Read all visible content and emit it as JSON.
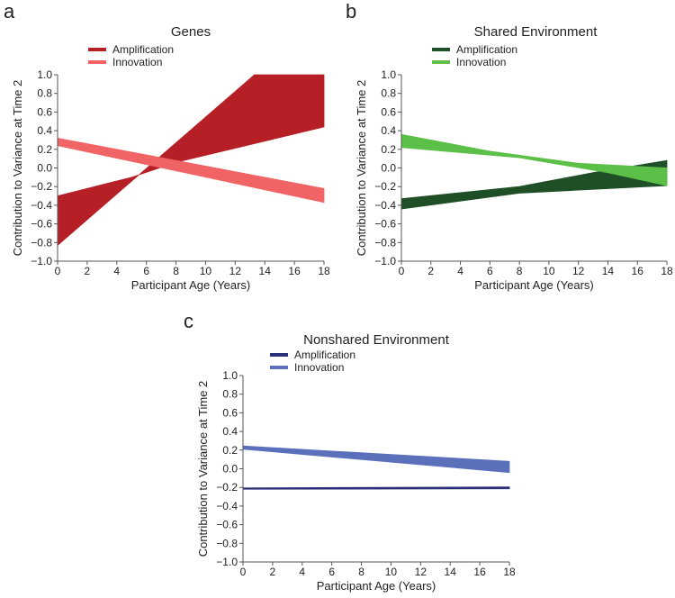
{
  "chart_data": [
    {
      "panel_letter": "a",
      "type": "area",
      "title": "Genes",
      "xlabel": "Participant Age (Years)",
      "ylabel": "Contribution to Variance at Time 2",
      "xlim": [
        0,
        18
      ],
      "ylim": [
        -1.0,
        1.0
      ],
      "xticks": [
        "0",
        "2",
        "4",
        "6",
        "8",
        "10",
        "12",
        "14",
        "16",
        "18"
      ],
      "yticks": [
        "1.0",
        "0.8",
        "0.6",
        "0.4",
        "0.2",
        "0.0",
        "−0.2",
        "−0.4",
        "−0.6",
        "−0.8",
        "−1.0"
      ],
      "grid": false,
      "legend_position": "top-left",
      "series": [
        {
          "name": "Amplification",
          "color": "#b71f26",
          "bound_a": [
            [
              0,
              -0.83
            ],
            [
              13.3,
              1.0
            ],
            [
              18,
              1.0
            ]
          ],
          "bound_b": [
            [
              0,
              -0.3
            ],
            [
              5,
              -0.1
            ],
            [
              8,
              0.06
            ],
            [
              18,
              0.44
            ]
          ]
        },
        {
          "name": "Innovation",
          "color": "#f06466",
          "bound_a": [
            [
              0,
              0.32
            ],
            [
              18,
              -0.22
            ]
          ],
          "bound_b": [
            [
              0,
              0.24
            ],
            [
              18,
              -0.37
            ]
          ]
        }
      ]
    },
    {
      "panel_letter": "b",
      "type": "area",
      "title": "Shared Environment",
      "xlabel": "Participant Age (Years)",
      "ylabel": "Contribution to Variance at Time 2",
      "xlim": [
        0,
        18
      ],
      "ylim": [
        -1.0,
        1.0
      ],
      "xticks": [
        "0",
        "2",
        "4",
        "6",
        "8",
        "10",
        "12",
        "14",
        "16",
        "18"
      ],
      "yticks": [
        "1.0",
        "0.8",
        "0.6",
        "0.4",
        "0.2",
        "0.0",
        "−0.2",
        "−0.4",
        "−0.6",
        "−0.8",
        "−1.0"
      ],
      "grid": false,
      "legend_position": "top-left",
      "series": [
        {
          "name": "Amplification",
          "color": "#1f4f26",
          "bound_a": [
            [
              0,
              -0.33
            ],
            [
              8,
              -0.2
            ],
            [
              13,
              -0.05
            ],
            [
              18,
              0.08
            ]
          ],
          "bound_b": [
            [
              0,
              -0.44
            ],
            [
              8,
              -0.27
            ],
            [
              18,
              -0.19
            ]
          ]
        },
        {
          "name": "Innovation",
          "color": "#5cbf48",
          "bound_a": [
            [
              0,
              0.36
            ],
            [
              6,
              0.18
            ],
            [
              12,
              0.05
            ],
            [
              18,
              0.0
            ]
          ],
          "bound_b": [
            [
              0,
              0.22
            ],
            [
              8,
              0.11
            ],
            [
              14,
              -0.05
            ],
            [
              18,
              -0.19
            ]
          ]
        }
      ]
    },
    {
      "panel_letter": "c",
      "type": "area",
      "title": "Nonshared Environment",
      "xlabel": "Participant Age (Years)",
      "ylabel": "Contribution to Variance at Time 2",
      "xlim": [
        0,
        18
      ],
      "ylim": [
        -1.0,
        1.0
      ],
      "xticks": [
        "0",
        "2",
        "4",
        "6",
        "8",
        "10",
        "12",
        "14",
        "16",
        "18"
      ],
      "yticks": [
        "1.0",
        "0.8",
        "0.6",
        "0.4",
        "0.2",
        "0.0",
        "−0.2",
        "−0.4",
        "−0.6",
        "−0.8",
        "−1.0"
      ],
      "grid": false,
      "legend_position": "top-left",
      "series": [
        {
          "name": "Amplification",
          "color": "#2a2f78",
          "bound_a": [
            [
              0,
              -0.205
            ],
            [
              18,
              -0.195
            ]
          ],
          "bound_b": [
            [
              0,
              -0.22
            ],
            [
              18,
              -0.215
            ]
          ]
        },
        {
          "name": "Innovation",
          "color": "#5b70bb",
          "bound_a": [
            [
              0,
              0.245
            ],
            [
              18,
              0.08
            ]
          ],
          "bound_b": [
            [
              0,
              0.21
            ],
            [
              18,
              -0.04
            ]
          ]
        }
      ]
    }
  ]
}
